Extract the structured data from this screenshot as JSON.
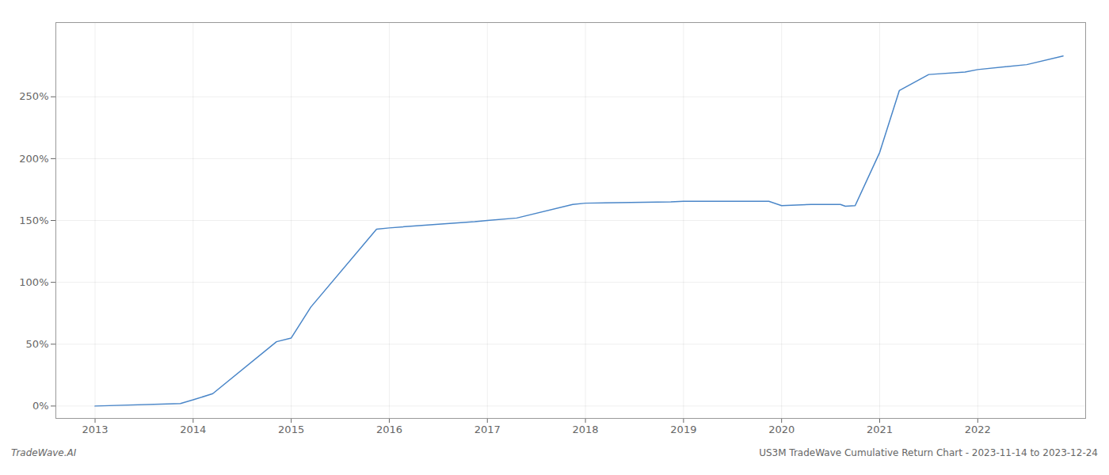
{
  "chart_data": {
    "type": "line",
    "title": "US3M TradeWave Cumulative Return Chart - 2023-11-14 to 2023-12-24",
    "annotations": [
      "TradeWave.AI"
    ],
    "x": [
      2013.0,
      2013.87,
      2014.0,
      2014.2,
      2014.85,
      2015.0,
      2015.2,
      2015.87,
      2016.0,
      2016.5,
      2016.87,
      2017.0,
      2017.3,
      2017.87,
      2018.0,
      2018.87,
      2019.0,
      2019.87,
      2020.0,
      2020.3,
      2020.6,
      2020.65,
      2020.75,
      2021.0,
      2021.2,
      2021.5,
      2021.87,
      2022.0,
      2022.5,
      2022.87
    ],
    "values": [
      0.0,
      2.0,
      5.0,
      10.0,
      52.0,
      55.0,
      80.0,
      143.0,
      144.0,
      147.0,
      149.0,
      150.0,
      152.0,
      163.0,
      164.0,
      165.0,
      165.5,
      165.5,
      162.0,
      163.0,
      163.0,
      161.5,
      162.0,
      205.0,
      255.0,
      268.0,
      270.0,
      272.0,
      276.0,
      283.0
    ],
    "color": "#4a86c8",
    "xlim": [
      2012.6,
      2023.1
    ],
    "xticks": [
      2013,
      2014,
      2015,
      2016,
      2017,
      2018,
      2019,
      2020,
      2021,
      2022
    ],
    "ylim": [
      -10,
      310
    ],
    "yticks": [
      {
        "value": 0,
        "label": "0%"
      },
      {
        "value": 50,
        "label": "50%"
      },
      {
        "value": 100,
        "label": "100%"
      },
      {
        "value": 150,
        "label": "150%"
      },
      {
        "value": 200,
        "label": "200%"
      },
      {
        "value": 250,
        "label": "250%"
      }
    ],
    "grid": true
  }
}
